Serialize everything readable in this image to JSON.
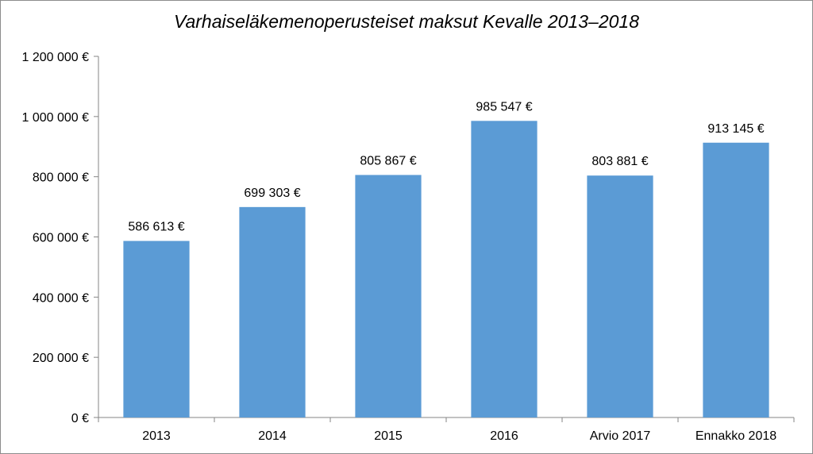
{
  "chart_data": {
    "type": "bar",
    "title": "Varhaiseläkemenoperusteiset maksut Kevalle 2013–2018",
    "categories": [
      "2013",
      "2014",
      "2015",
      "2016",
      "Arvio 2017",
      "Ennakko 2018"
    ],
    "values": [
      586613,
      699303,
      805867,
      985547,
      803881,
      913145
    ],
    "data_labels": [
      "586 613 €",
      "699 303 €",
      "805 867 €",
      "985 547 €",
      "803 881 €",
      "913 145 €"
    ],
    "ylim": [
      0,
      1200000
    ],
    "y_ticks": [
      0,
      200000,
      400000,
      600000,
      800000,
      1000000,
      1200000
    ],
    "y_tick_labels": [
      "0 €",
      "200 000 €",
      "400 000 €",
      "600 000 €",
      "800 000 €",
      "1 000 000 €",
      "1 200 000 €"
    ],
    "xlabel": "",
    "ylabel": "",
    "grid": false,
    "legend": "none",
    "bar_color": "#5b9bd5",
    "axis_color": "#868686"
  }
}
